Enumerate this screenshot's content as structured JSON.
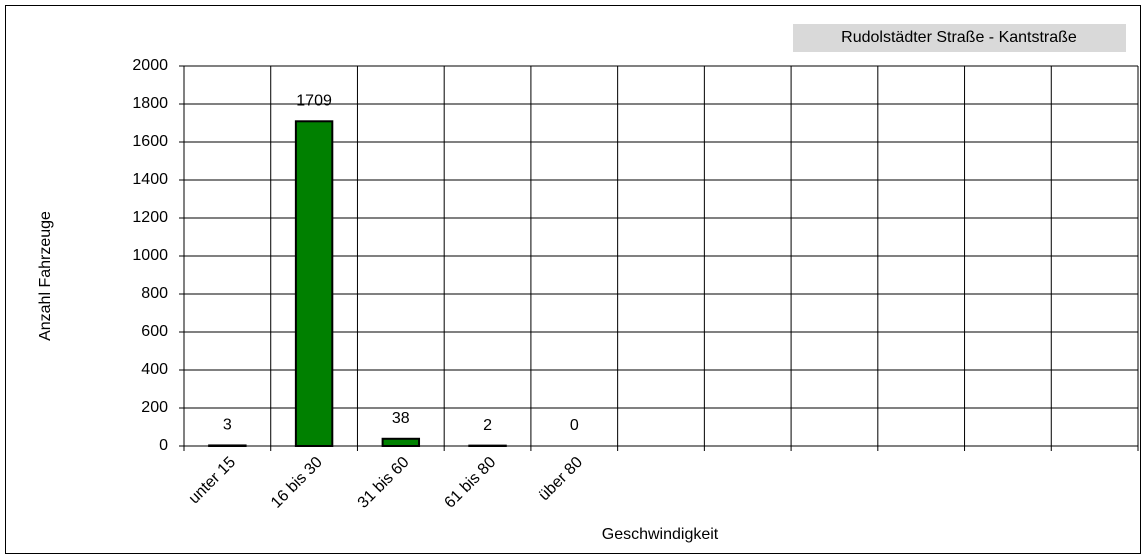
{
  "chart_data": {
    "type": "bar",
    "title": "Rudolstädter Straße - Kantstraße",
    "x_label": "Geschwindigkeit",
    "y_label": "Anzahl Fahrzeuge",
    "categories": [
      "unter 15",
      "16 bis 30",
      "31 bis 60",
      "61 bis 80",
      "über 80",
      null,
      null,
      null,
      null,
      null,
      null
    ],
    "values": [
      3,
      1709,
      38,
      2,
      0,
      null,
      null,
      null,
      null,
      null,
      null
    ],
    "color": "#008000",
    "ylim": [
      0,
      2000
    ],
    "yticks": [
      0,
      200,
      400,
      600,
      800,
      1000,
      1200,
      1400,
      1600,
      1800,
      2000
    ],
    "grid": true
  }
}
